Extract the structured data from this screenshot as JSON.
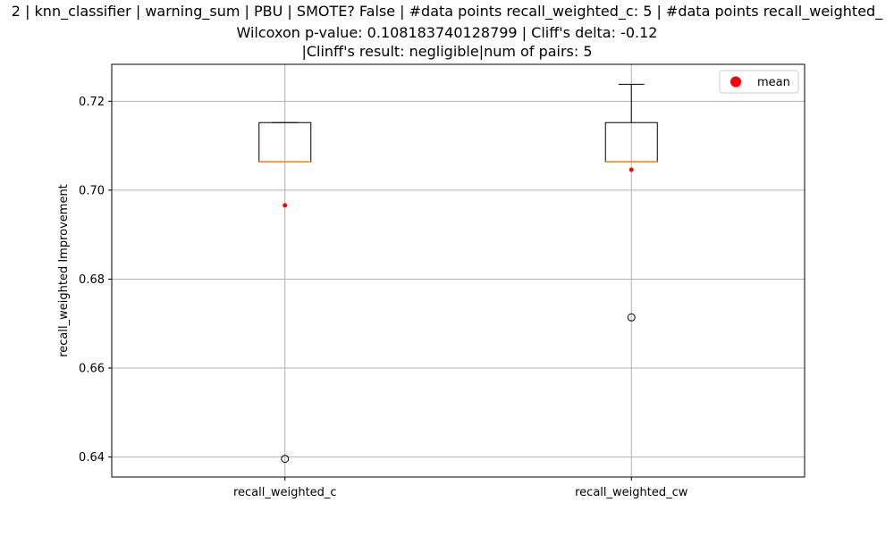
{
  "chart_data": {
    "type": "boxplot",
    "title_lines": [
      "2 | knn_classifier | warning_sum | PBU | SMOTE? False | #data points recall_weighted_c: 5 | #data points recall_weighted_",
      "Wilcoxon p-value: 0.108183740128799 | Cliff's delta: -0.12",
      "|Clinff's result: negligible|num of pairs: 5"
    ],
    "ylabel": "recall_weighted Improvement",
    "categories": [
      "recall_weighted_c",
      "recall_weighted_cw"
    ],
    "ylim": [
      0.6355,
      0.7283
    ],
    "yticks": [
      0.64,
      0.66,
      0.68,
      0.7,
      0.72
    ],
    "ytick_labels": [
      "0.64",
      "0.66",
      "0.68",
      "0.70",
      "0.72"
    ],
    "grid": true,
    "legend": {
      "placement": "top-right",
      "entries": [
        {
          "label": "mean",
          "color": "#ff0000",
          "marker": "circle"
        }
      ]
    },
    "boxes": [
      {
        "name": "recall_weighted_c",
        "q1": 0.7064,
        "median": 0.7064,
        "q3": 0.7152,
        "whisker_low": 0.7064,
        "whisker_high": 0.7152,
        "fliers": [
          0.6396
        ],
        "mean": 0.6966
      },
      {
        "name": "recall_weighted_cw",
        "q1": 0.7064,
        "median": 0.7064,
        "q3": 0.7152,
        "whisker_low": 0.7064,
        "whisker_high": 0.7238,
        "fliers": [
          0.6714
        ],
        "mean": 0.7046
      }
    ],
    "colors": {
      "box": "#000000",
      "median": "#ff7f0e",
      "mean": "#ff0000",
      "grid": "#b0b0b0"
    }
  }
}
